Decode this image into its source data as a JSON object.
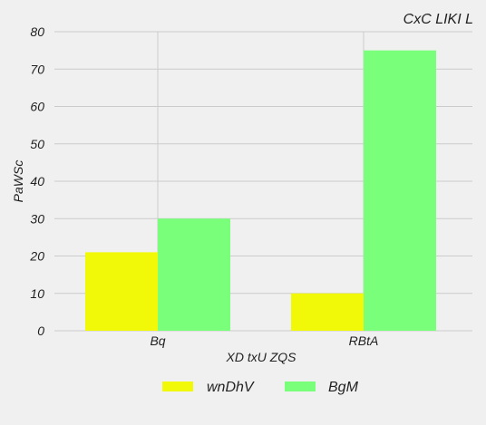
{
  "chart_data": {
    "type": "bar",
    "title": "CxC LIKI L",
    "xlabel": "XD txU ZQS",
    "ylabel": "PaWSc",
    "categories": [
      "Bq",
      "RBtA"
    ],
    "series": [
      {
        "name": "wnDhV",
        "values": [
          21,
          10
        ],
        "color": "#f2f908"
      },
      {
        "name": "BgM",
        "values": [
          30,
          75
        ],
        "color": "#79ff79"
      }
    ],
    "ylim": [
      0,
      80
    ],
    "yticks": [
      0,
      10,
      20,
      30,
      40,
      50,
      60,
      70,
      80
    ],
    "grid": true,
    "legend_position": "bottom"
  }
}
